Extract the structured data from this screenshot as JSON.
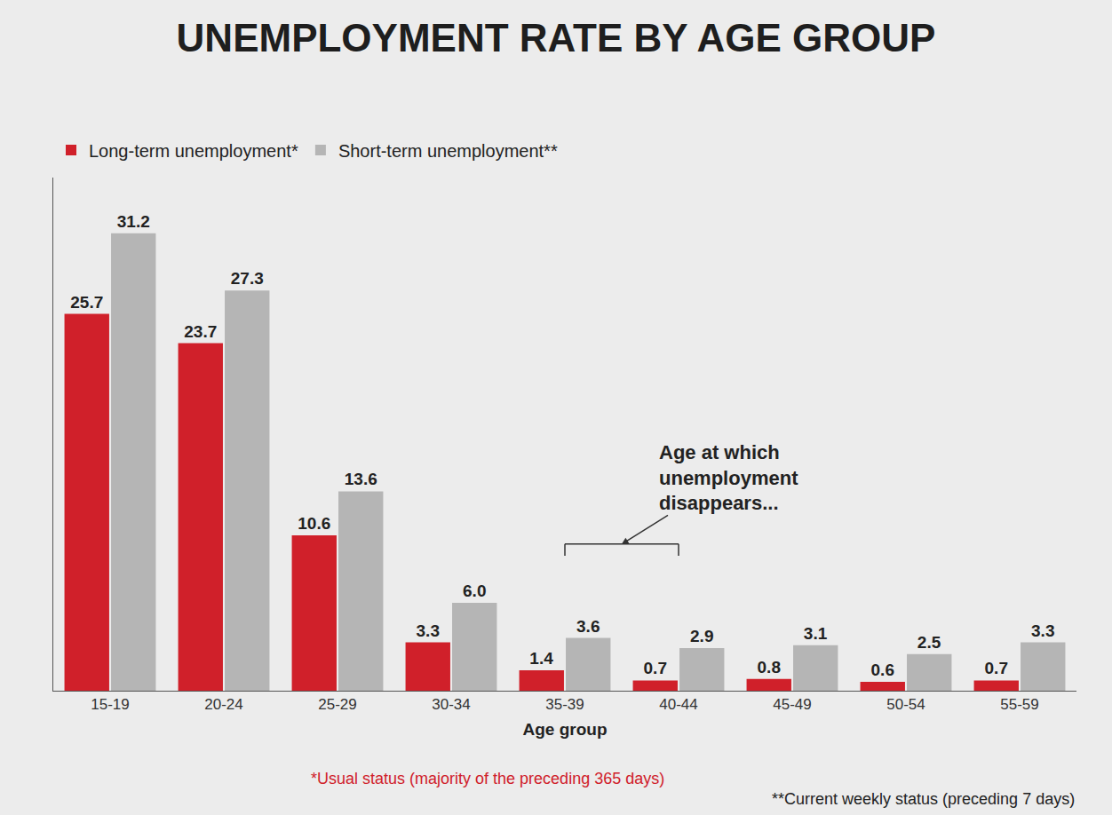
{
  "chart_data": {
    "type": "bar",
    "title": "UNEMPLOYMENT RATE BY AGE GROUP",
    "x_label": "Age group",
    "categories": [
      "15-19",
      "20-24",
      "25-29",
      "30-34",
      "35-39",
      "40-44",
      "45-49",
      "50-54",
      "55-59"
    ],
    "series": [
      {
        "name": "Long-term unemployment*",
        "color": "#d0202a",
        "values": [
          25.7,
          23.7,
          10.6,
          3.3,
          1.4,
          0.7,
          0.8,
          0.6,
          0.7
        ],
        "value_labels": [
          "25.7",
          "23.7",
          "10.6",
          "3.3",
          "1.4",
          "0.7",
          "0.8",
          "0.6",
          "0.7"
        ]
      },
      {
        "name": "Short-term unemployment**",
        "color": "#b5b5b5",
        "values": [
          31.2,
          27.3,
          13.6,
          6.0,
          3.6,
          2.9,
          3.1,
          2.5,
          3.3
        ],
        "value_labels": [
          "31.2",
          "27.3",
          "13.6",
          "6.0",
          "3.6",
          "2.9",
          "3.1",
          "2.5",
          "3.3"
        ]
      }
    ],
    "ylim": [
      0,
      35
    ],
    "grid": false,
    "data_labels": true,
    "tick_labels": "x",
    "legend": "top-left",
    "annotations": [
      {
        "text": "Age at which unemployment disappears...",
        "from": "35-39",
        "to": "40-44"
      }
    ],
    "notes": [
      "*Usual status (majority of the preceding 365 days)",
      "**Current weekly status (preceding 7 days)"
    ]
  }
}
